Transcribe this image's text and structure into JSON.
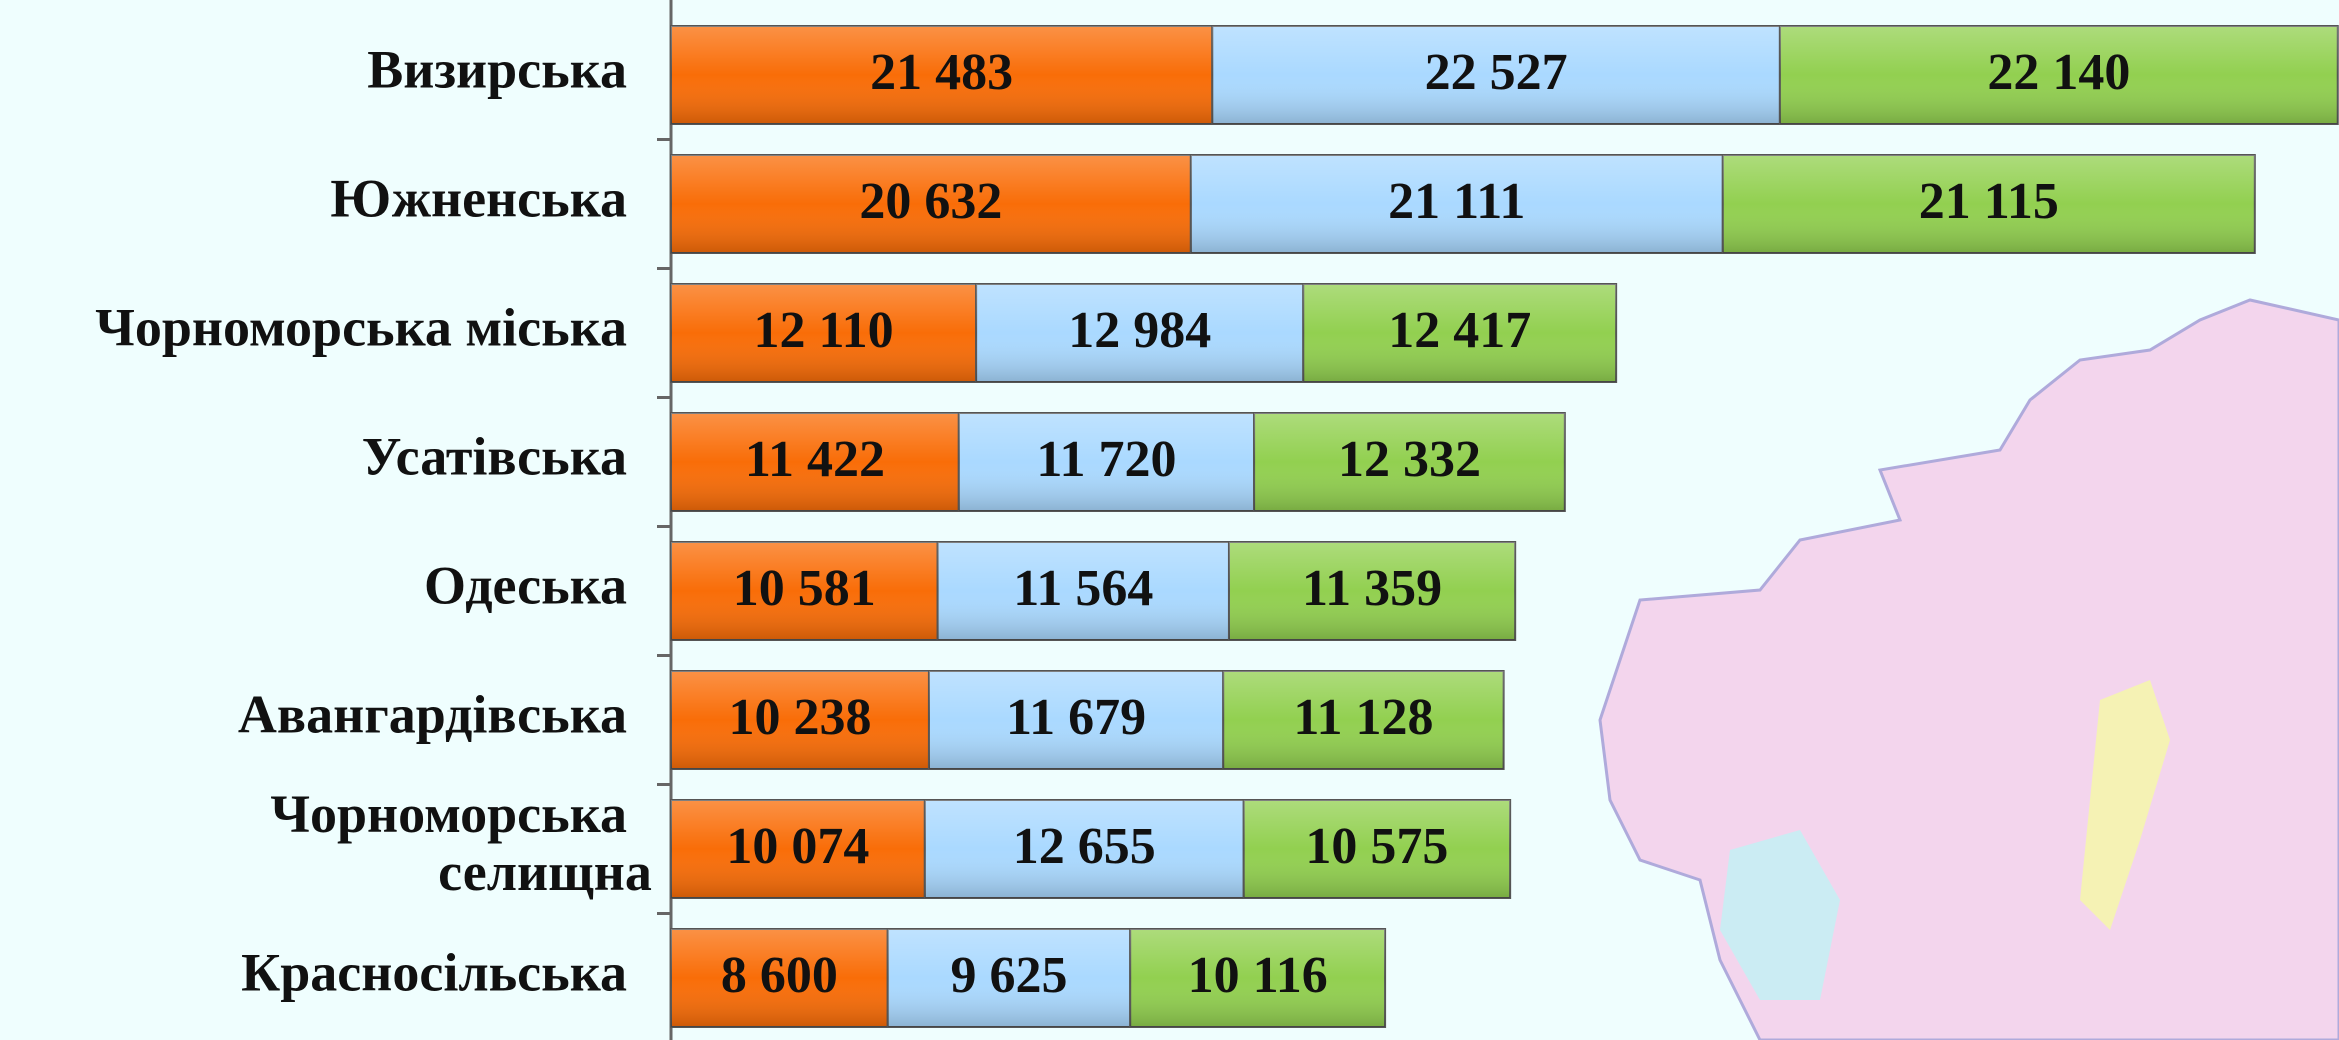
{
  "chart_data": {
    "type": "stacked-bar-horizontal",
    "categories": [
      "Визирська",
      "Южненська",
      "Чорноморська міська",
      "Усатівська",
      "Одеська",
      "Авангардівська",
      "Чорноморська\nселищна",
      "Красносільська"
    ],
    "series": [
      {
        "color": "#f96d08",
        "values": [
          21483,
          20632,
          12110,
          11422,
          10581,
          10238,
          10074,
          8600
        ],
        "value_labels": [
          "21 483",
          "20 632",
          "12 110",
          "11 422",
          "10 581",
          "10 238",
          "10 074",
          "8 600"
        ]
      },
      {
        "color": "#aad9ff",
        "values": [
          22527,
          21111,
          12984,
          11720,
          11564,
          11679,
          12655,
          9625
        ],
        "value_labels": [
          "22 527",
          "21 111",
          "12 984",
          "11 720",
          "11 564",
          "11 679",
          "12 655",
          "9 625"
        ]
      },
      {
        "color": "#92d050",
        "values": [
          22140,
          21115,
          12417,
          12332,
          11359,
          11128,
          10575,
          10116
        ],
        "value_labels": [
          "22 140",
          "21 115",
          "12 417",
          "12 332",
          "11 359",
          "11 128",
          "10 575",
          "10 116"
        ]
      }
    ],
    "xlim": [
      0,
      66200
    ]
  }
}
